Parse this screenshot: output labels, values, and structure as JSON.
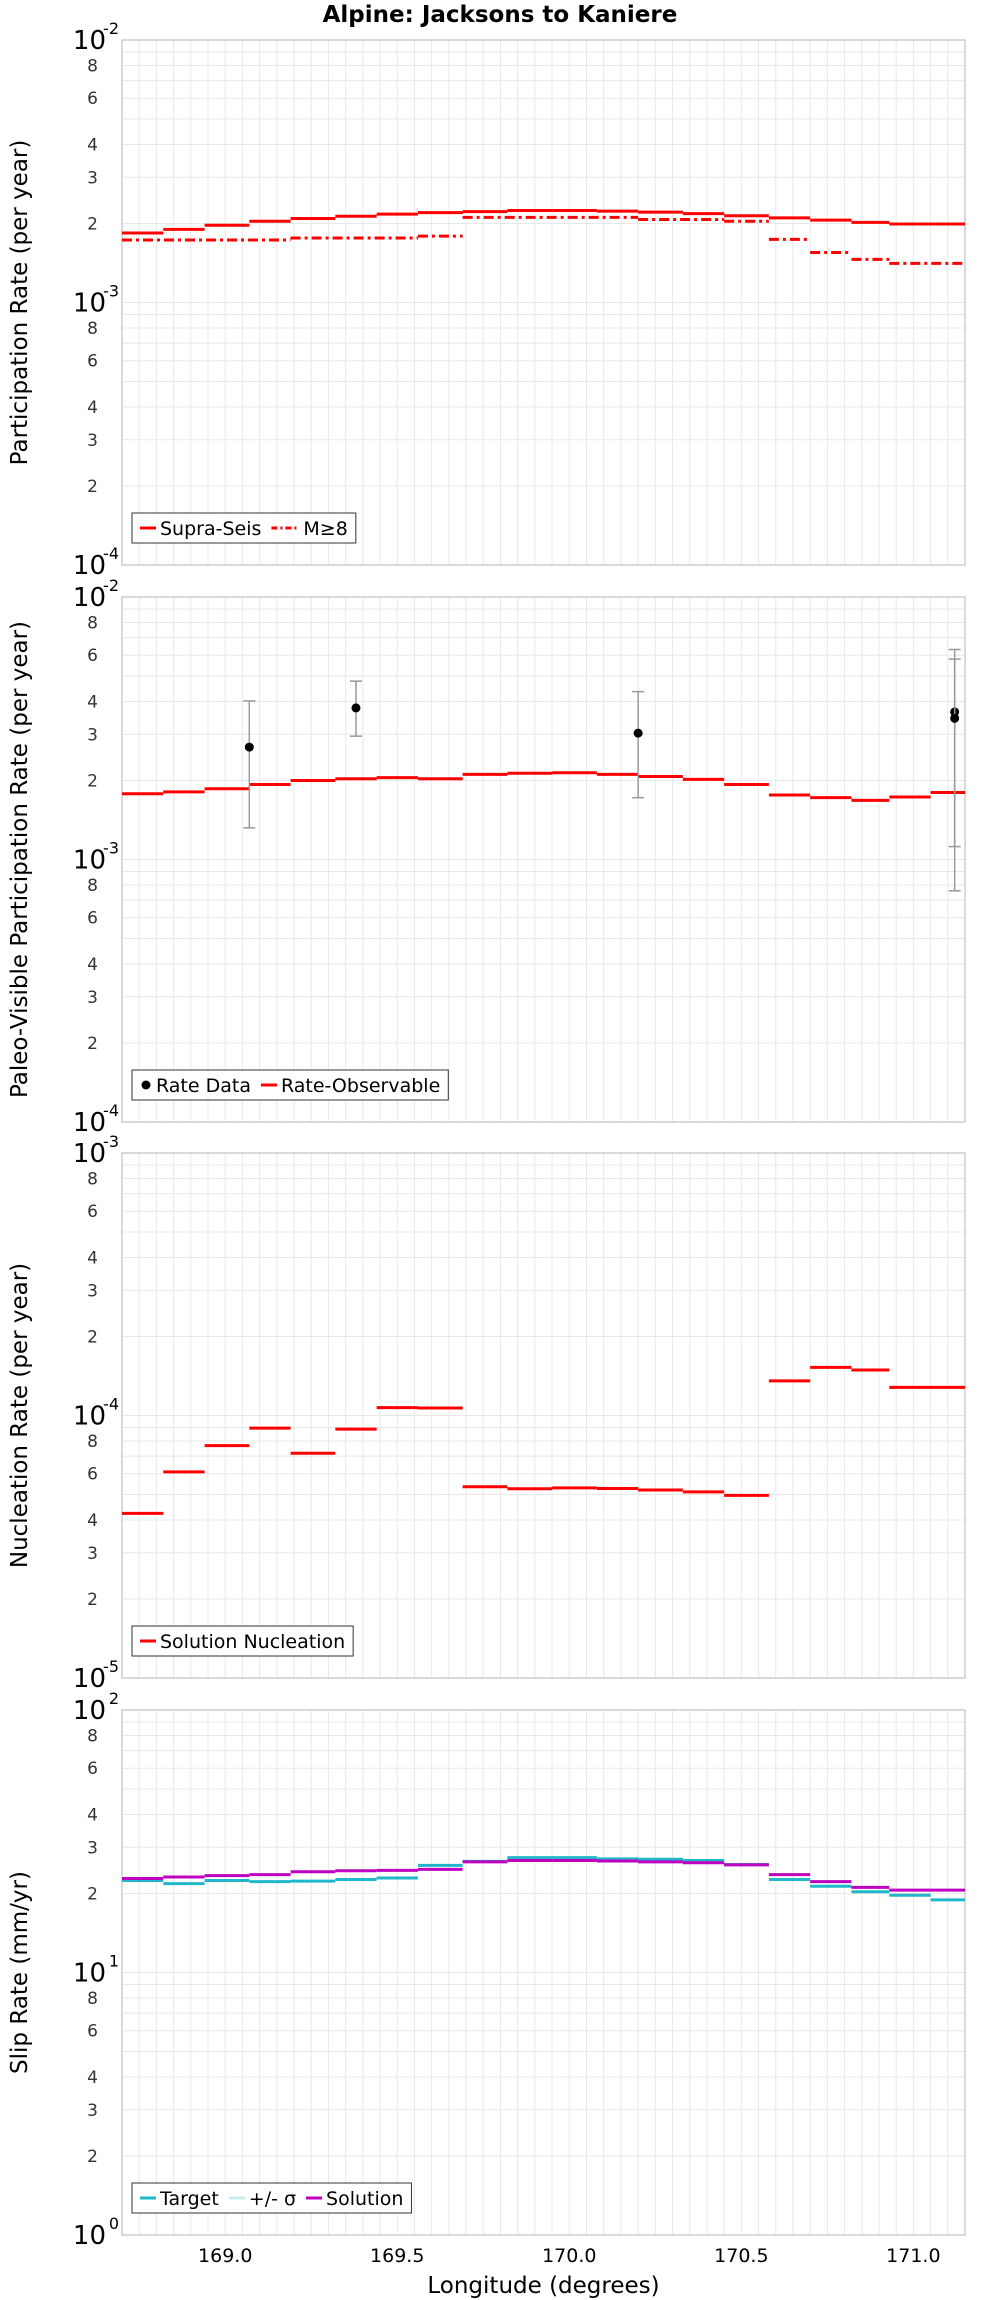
{
  "title": "Alpine: Jacksons to Kaniere",
  "xlabel": "Longitude (degrees)",
  "xticks": [
    "169.0",
    "169.5",
    "170.0",
    "170.5",
    "171.0"
  ],
  "colors": {
    "red": "#ff0000",
    "cyan": "#1fb7c9",
    "magenta": "#c000c0",
    "errbar": "#999999",
    "grid": "#e8e8e8",
    "frame": "#c0c0c0"
  },
  "chart_data": [
    {
      "type": "line",
      "ylabel": "Participation Rate (per year)",
      "yscale": "log",
      "ylim_exp": [
        -4,
        -2
      ],
      "xlim": [
        168.7,
        171.15
      ],
      "yticks": [
        {
          "b": "10",
          "e": "-4"
        },
        {
          "t": "2"
        },
        {
          "t": "3"
        },
        {
          "t": "4"
        },
        {
          "t": "6"
        },
        {
          "t": "8"
        },
        {
          "b": "10",
          "e": "-3"
        },
        {
          "t": "2"
        },
        {
          "t": "3"
        },
        {
          "t": "4"
        },
        {
          "t": "6"
        },
        {
          "t": "8"
        },
        {
          "b": "10",
          "e": "-2"
        }
      ],
      "legend": {
        "position": "bottom-left",
        "items": [
          {
            "label": "Supra-Seis",
            "kind": "line",
            "style": "solid",
            "color": "#ff0000"
          },
          {
            "label": "M≥8",
            "kind": "line",
            "style": "dashdot",
            "color": "#ff0000"
          }
        ]
      },
      "series": [
        {
          "name": "Supra-Seis",
          "style": "solid",
          "color": "#ff0000",
          "steps": [
            [
              168.7,
              168.82,
              0.00184
            ],
            [
              168.82,
              168.94,
              0.0019
            ],
            [
              168.94,
              169.07,
              0.00197
            ],
            [
              169.07,
              169.19,
              0.00204
            ],
            [
              169.19,
              169.32,
              0.00209
            ],
            [
              169.32,
              169.44,
              0.00213
            ],
            [
              169.44,
              169.56,
              0.00217
            ],
            [
              169.56,
              169.69,
              0.0022
            ],
            [
              169.69,
              169.82,
              0.00222
            ],
            [
              169.82,
              169.95,
              0.00224
            ],
            [
              169.95,
              170.08,
              0.00224
            ],
            [
              170.08,
              170.2,
              0.00223
            ],
            [
              170.2,
              170.33,
              0.00221
            ],
            [
              170.33,
              170.45,
              0.00218
            ],
            [
              170.45,
              170.58,
              0.00214
            ],
            [
              170.58,
              170.7,
              0.0021
            ],
            [
              170.7,
              170.82,
              0.00206
            ],
            [
              170.82,
              170.93,
              0.00202
            ],
            [
              170.93,
              171.15,
              0.00199
            ]
          ]
        },
        {
          "name": "M≥8",
          "style": "dashdot",
          "color": "#ff0000",
          "steps": [
            [
              168.7,
              169.19,
              0.00173
            ],
            [
              169.19,
              169.56,
              0.00176
            ],
            [
              169.56,
              169.69,
              0.00179
            ],
            [
              169.69,
              170.2,
              0.00211
            ],
            [
              170.2,
              170.45,
              0.00207
            ],
            [
              170.45,
              170.58,
              0.00204
            ],
            [
              170.58,
              170.7,
              0.00174
            ],
            [
              170.7,
              170.82,
              0.00155
            ],
            [
              170.82,
              170.93,
              0.00146
            ],
            [
              170.93,
              171.15,
              0.00141
            ]
          ]
        }
      ]
    },
    {
      "type": "line",
      "ylabel": "Paleo-Visible Participation Rate (per year)",
      "yscale": "log",
      "ylim_exp": [
        -4,
        -2
      ],
      "xlim": [
        168.7,
        171.15
      ],
      "yticks": [
        {
          "b": "10",
          "e": "-4"
        },
        {
          "t": "2"
        },
        {
          "t": "3"
        },
        {
          "t": "4"
        },
        {
          "t": "6"
        },
        {
          "t": "8"
        },
        {
          "b": "10",
          "e": "-3"
        },
        {
          "t": "2"
        },
        {
          "t": "3"
        },
        {
          "t": "4"
        },
        {
          "t": "6"
        },
        {
          "t": "8"
        },
        {
          "b": "10",
          "e": "-2"
        }
      ],
      "legend": {
        "position": "bottom-left",
        "items": [
          {
            "label": "Rate Data",
            "kind": "dot",
            "color": "#000000"
          },
          {
            "label": "Rate-Observable",
            "kind": "line",
            "style": "solid",
            "color": "#ff0000"
          }
        ]
      },
      "series": [
        {
          "name": "Rate-Observable",
          "style": "solid",
          "color": "#ff0000",
          "steps": [
            [
              168.7,
              168.82,
              0.00178
            ],
            [
              168.82,
              168.94,
              0.00181
            ],
            [
              168.94,
              169.07,
              0.00186
            ],
            [
              169.07,
              169.19,
              0.00193
            ],
            [
              169.19,
              169.32,
              0.002
            ],
            [
              169.32,
              169.44,
              0.00203
            ],
            [
              169.44,
              169.56,
              0.00205
            ],
            [
              169.56,
              169.69,
              0.00203
            ],
            [
              169.69,
              169.82,
              0.00211
            ],
            [
              169.82,
              169.95,
              0.00213
            ],
            [
              169.95,
              170.08,
              0.00214
            ],
            [
              170.08,
              170.2,
              0.00211
            ],
            [
              170.2,
              170.33,
              0.00207
            ],
            [
              170.33,
              170.45,
              0.00202
            ],
            [
              170.45,
              170.58,
              0.00193
            ],
            [
              170.58,
              170.7,
              0.00176
            ],
            [
              170.7,
              170.82,
              0.00172
            ],
            [
              170.82,
              170.93,
              0.00168
            ],
            [
              170.93,
              171.05,
              0.00173
            ],
            [
              171.05,
              171.15,
              0.0018
            ],
            [
              171.15,
              171.15,
              0.00186
            ]
          ]
        }
      ],
      "points": [
        {
          "x": 169.07,
          "y": 0.00268,
          "lo": 0.00132,
          "hi": 0.00402
        },
        {
          "x": 169.38,
          "y": 0.00378,
          "lo": 0.00295,
          "hi": 0.00478
        },
        {
          "x": 170.2,
          "y": 0.00303,
          "lo": 0.00172,
          "hi": 0.00436
        },
        {
          "x": 171.12,
          "y": 0.00365,
          "lo": 0.00076,
          "hi": 0.00631
        },
        {
          "x": 171.12,
          "y": 0.00345,
          "lo": 0.00112,
          "hi": 0.0058
        }
      ]
    },
    {
      "type": "line",
      "ylabel": "Nucleation Rate (per year)",
      "yscale": "log",
      "ylim_exp": [
        -5,
        -3
      ],
      "xlim": [
        168.7,
        171.15
      ],
      "yticks": [
        {
          "b": "10",
          "e": "-5"
        },
        {
          "t": "2"
        },
        {
          "t": "3"
        },
        {
          "t": "4"
        },
        {
          "t": "6"
        },
        {
          "t": "8"
        },
        {
          "b": "10",
          "e": "-4"
        },
        {
          "t": "2"
        },
        {
          "t": "3"
        },
        {
          "t": "4"
        },
        {
          "t": "6"
        },
        {
          "t": "8"
        },
        {
          "b": "10",
          "e": "-3"
        }
      ],
      "legend": {
        "position": "bottom-left",
        "items": [
          {
            "label": "Solution Nucleation",
            "kind": "line",
            "style": "solid",
            "color": "#ff0000"
          }
        ]
      },
      "series": [
        {
          "name": "Solution Nucleation",
          "style": "solid",
          "color": "#ff0000",
          "steps": [
            [
              168.7,
              168.82,
              4.24e-05
            ],
            [
              168.82,
              168.94,
              6.1e-05
            ],
            [
              168.94,
              169.07,
              7.68e-05
            ],
            [
              169.07,
              169.19,
              8.95e-05
            ],
            [
              169.19,
              169.32,
              7.18e-05
            ],
            [
              169.32,
              169.44,
              8.87e-05
            ],
            [
              169.44,
              169.56,
              0.0001072
            ],
            [
              169.56,
              169.69,
              0.0001068
            ],
            [
              169.69,
              169.82,
              5.35e-05
            ],
            [
              169.82,
              169.95,
              5.26e-05
            ],
            [
              169.95,
              170.08,
              5.3e-05
            ],
            [
              170.08,
              170.2,
              5.27e-05
            ],
            [
              170.2,
              170.33,
              5.2e-05
            ],
            [
              170.33,
              170.45,
              5.12e-05
            ],
            [
              170.45,
              170.58,
              4.96e-05
            ],
            [
              170.58,
              170.7,
              0.0001355
            ],
            [
              170.7,
              170.82,
              0.0001526
            ],
            [
              170.82,
              170.93,
              0.000149
            ],
            [
              170.93,
              171.15,
              0.000128
            ]
          ]
        }
      ]
    },
    {
      "type": "line",
      "ylabel": "Slip Rate (mm/yr)",
      "yscale": "log",
      "ylim_exp": [
        0,
        2
      ],
      "xlim": [
        168.7,
        171.15
      ],
      "yticks": [
        {
          "b": "10",
          "e": "0"
        },
        {
          "t": "2"
        },
        {
          "t": "3"
        },
        {
          "t": "4"
        },
        {
          "t": "6"
        },
        {
          "t": "8"
        },
        {
          "b": "10",
          "e": "1"
        },
        {
          "t": "2"
        },
        {
          "t": "3"
        },
        {
          "t": "4"
        },
        {
          "t": "6"
        },
        {
          "t": "8"
        },
        {
          "b": "10",
          "e": "2"
        }
      ],
      "legend": {
        "position": "bottom-left",
        "items": [
          {
            "label": "Target",
            "kind": "line",
            "style": "solid",
            "color": "#1fb7c9"
          },
          {
            "label": "+/- σ",
            "kind": "line",
            "style": "solid",
            "color": "#c8eef2"
          },
          {
            "label": "Solution",
            "kind": "line",
            "style": "solid",
            "color": "#c000c0"
          }
        ]
      },
      "series": [
        {
          "name": "Target",
          "style": "solid",
          "color": "#1fb7c9",
          "steps": [
            [
              168.7,
              168.82,
              22.4
            ],
            [
              168.82,
              168.94,
              21.8
            ],
            [
              168.94,
              169.07,
              22.4
            ],
            [
              169.07,
              169.19,
              22.2
            ],
            [
              169.19,
              169.32,
              22.3
            ],
            [
              169.32,
              169.44,
              22.6
            ],
            [
              169.44,
              169.56,
              22.9
            ],
            [
              169.56,
              169.69,
              25.6
            ],
            [
              169.69,
              169.82,
              26.5
            ],
            [
              169.82,
              169.95,
              27.4
            ],
            [
              169.95,
              170.08,
              27.4
            ],
            [
              170.08,
              170.2,
              27.1
            ],
            [
              170.2,
              170.33,
              27.0
            ],
            [
              170.33,
              170.45,
              26.7
            ],
            [
              170.45,
              170.58,
              25.8
            ],
            [
              170.58,
              170.7,
              22.6
            ],
            [
              170.7,
              170.82,
              21.3
            ],
            [
              170.82,
              170.93,
              20.3
            ],
            [
              170.93,
              171.05,
              19.7
            ],
            [
              171.05,
              171.15,
              18.9
            ]
          ]
        },
        {
          "name": "Solution",
          "style": "solid",
          "color": "#c000c0",
          "steps": [
            [
              168.7,
              168.82,
              22.8
            ],
            [
              168.82,
              168.94,
              23.1
            ],
            [
              168.94,
              169.07,
              23.4
            ],
            [
              169.07,
              169.19,
              23.6
            ],
            [
              169.19,
              169.32,
              24.2
            ],
            [
              169.32,
              169.44,
              24.4
            ],
            [
              169.44,
              169.56,
              24.5
            ],
            [
              169.56,
              169.69,
              24.7
            ],
            [
              169.69,
              169.82,
              26.4
            ],
            [
              169.82,
              169.95,
              26.7
            ],
            [
              169.95,
              170.08,
              26.7
            ],
            [
              170.08,
              170.2,
              26.6
            ],
            [
              170.2,
              170.33,
              26.4
            ],
            [
              170.33,
              170.45,
              26.2
            ],
            [
              170.45,
              170.58,
              25.7
            ],
            [
              170.58,
              170.7,
              23.6
            ],
            [
              170.7,
              170.82,
              22.2
            ],
            [
              170.82,
              170.93,
              21.1
            ],
            [
              170.93,
              171.15,
              20.6
            ]
          ]
        }
      ]
    }
  ]
}
